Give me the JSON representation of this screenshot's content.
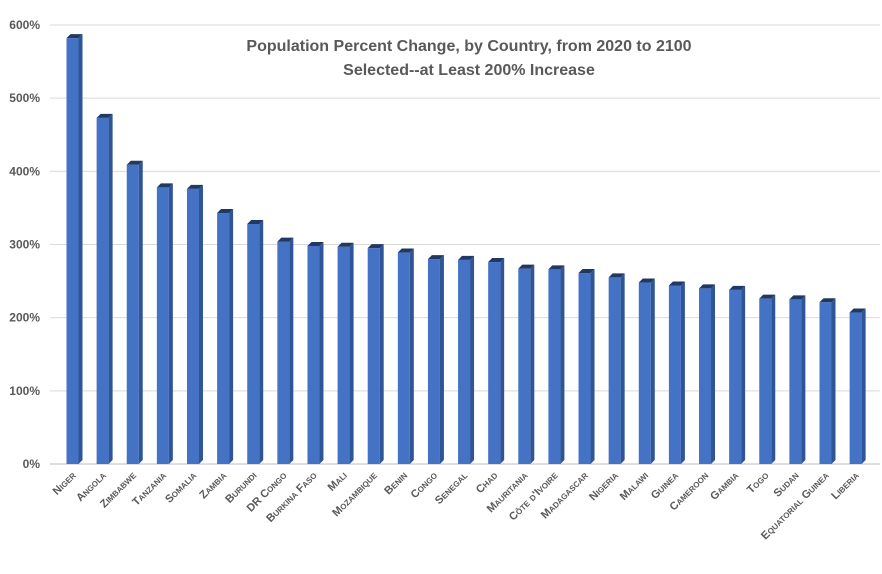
{
  "chart_data": {
    "type": "bar",
    "title": "Population Percent Change, by Country, from 2020 to 2100",
    "subtitle": "Selected--at Least 200% Increase",
    "xlabel": "",
    "ylabel": "",
    "ylim": [
      0,
      600
    ],
    "y_ticks": [
      0,
      100,
      200,
      300,
      400,
      500,
      600
    ],
    "y_tick_labels": [
      "0%",
      "100%",
      "200%",
      "300%",
      "400%",
      "500%",
      "600%"
    ],
    "grid": true,
    "legend": "none",
    "bar_color": "#4472C4",
    "bar_side_color": "#2F5597",
    "bar_top_color": "#203864",
    "categories": [
      "Niger",
      "Angola",
      "Zimbabwe",
      "Tanzania",
      "Somalia",
      "Zambia",
      "Burundi",
      "DR Congo",
      "Burkina Faso",
      "Mali",
      "Mozambique",
      "Benin",
      "Congo",
      "Senegal",
      "Chad",
      "Mauritania",
      "Côte d'Ivoire",
      "Madagascar",
      "Nigeria",
      "Malawi",
      "Guinea",
      "Cameroon",
      "Gambia",
      "Togo",
      "Sudan",
      "Equatorial Guinea",
      "Liberia"
    ],
    "values": [
      582,
      473,
      409,
      378,
      376,
      343,
      328,
      304,
      298,
      297,
      295,
      289,
      280,
      279,
      276,
      267,
      266,
      261,
      255,
      248,
      244,
      240,
      238,
      226,
      225,
      221,
      207
    ]
  }
}
